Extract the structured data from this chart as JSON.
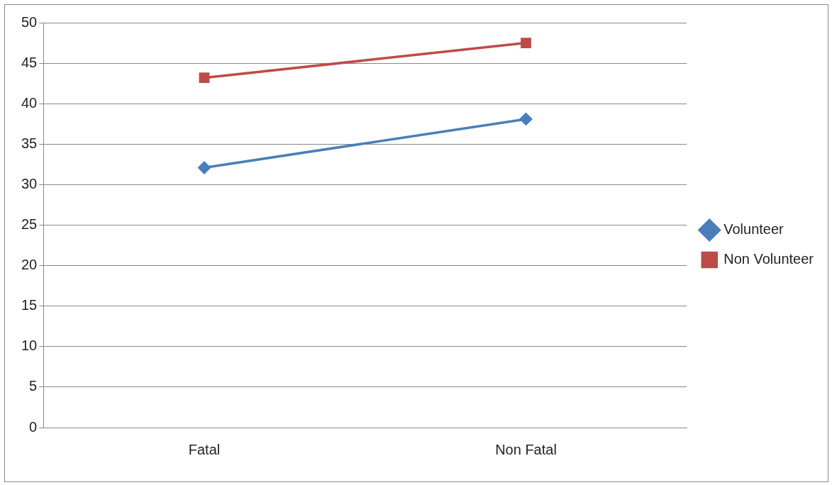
{
  "chart_data": {
    "type": "line",
    "categories": [
      "Fatal",
      "Non Fatal"
    ],
    "series": [
      {
        "name": "Volunteer",
        "color": "#4a7ebb",
        "values": [
          32.1,
          38.1
        ],
        "marker": "diamond"
      },
      {
        "name": "Non Volunteer",
        "color": "#be4b48",
        "values": [
          43.2,
          47.5
        ],
        "marker": "square"
      }
    ],
    "ylim": [
      0,
      50
    ],
    "yticks": [
      0,
      5,
      10,
      15,
      20,
      25,
      30,
      35,
      40,
      45,
      50
    ],
    "grid": "y",
    "legend": "right"
  }
}
